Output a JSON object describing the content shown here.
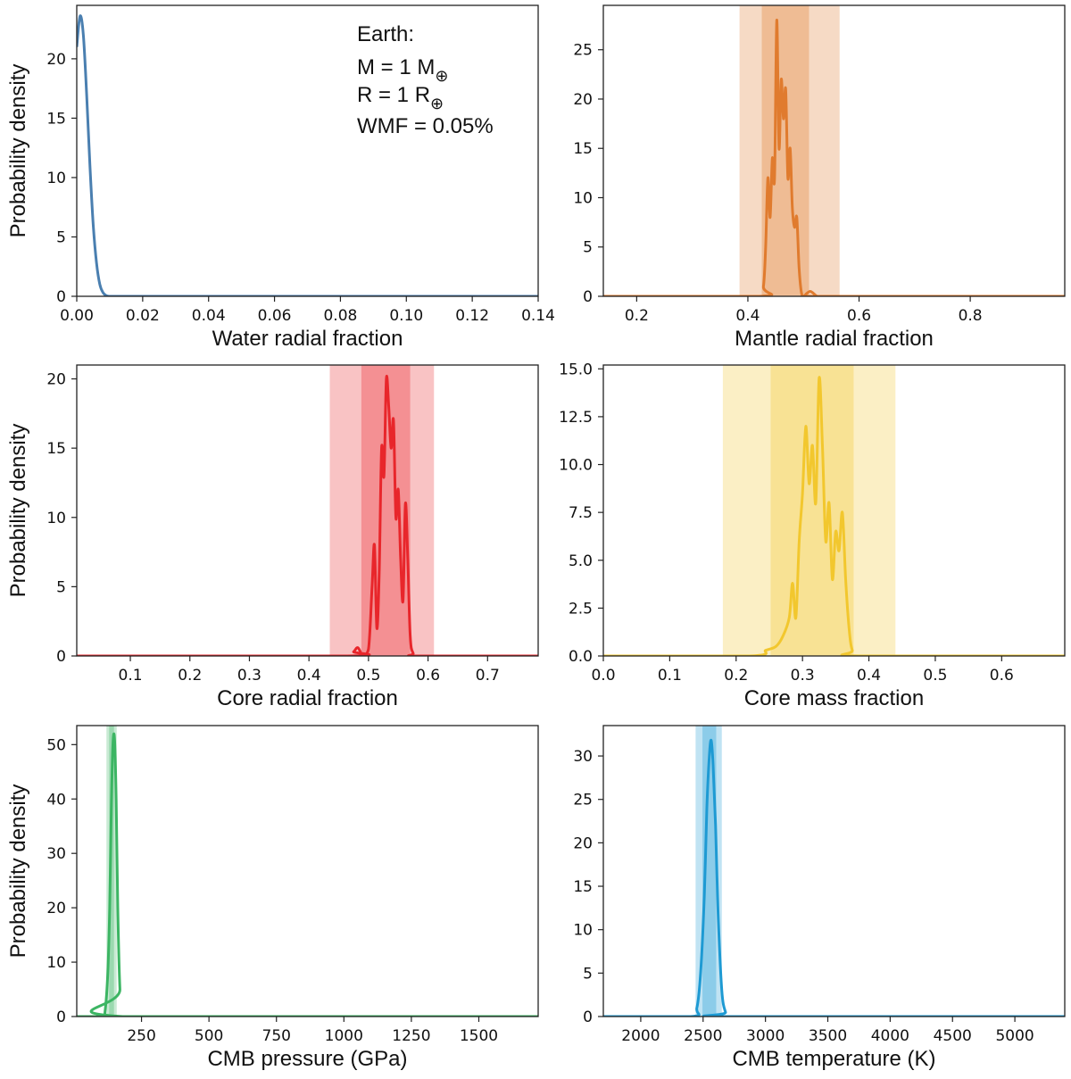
{
  "annotation": {
    "line1": "Earth:",
    "line2_prefix": "M = 1 M",
    "line3_prefix": "R = 1 R",
    "subscript_symbol": "⊕",
    "line4": "WMF = 0.05%"
  },
  "chart_data": [
    {
      "type": "line",
      "xlabel": "Water radial fraction",
      "ylabel": "Probability density",
      "color": "#4a7fb0",
      "xlim": [
        0,
        0.14
      ],
      "ylim": [
        0,
        24.5
      ],
      "xticks": [
        0,
        0.02,
        0.04,
        0.06,
        0.08,
        0.1,
        0.12,
        0.14
      ],
      "xtick_labels": [
        "0.00",
        "0.02",
        "0.04",
        "0.06",
        "0.08",
        "0.10",
        "0.12",
        "0.14"
      ],
      "yticks": [
        0,
        5,
        10,
        15,
        20
      ],
      "ytick_labels": [
        "0",
        "5",
        "10",
        "15",
        "20"
      ],
      "bands": [],
      "x": [
        0,
        0.001,
        0.002,
        0.003,
        0.004,
        0.005,
        0.006,
        0.007,
        0.008,
        0.009,
        0.01,
        0.012,
        0.02,
        0.05,
        0.1,
        0.14
      ],
      "y": [
        21,
        23.6,
        22,
        17,
        11,
        6,
        2.8,
        1,
        0.3,
        0.05,
        0,
        0,
        0,
        0,
        0,
        0
      ]
    },
    {
      "type": "line",
      "xlabel": "Mantle radial fraction",
      "ylabel": "",
      "color": "#e07b2e",
      "xlim": [
        0.14,
        0.97
      ],
      "ylim": [
        0,
        29.5
      ],
      "xticks": [
        0.2,
        0.4,
        0.6,
        0.8
      ],
      "xtick_labels": [
        "0.2",
        "0.4",
        "0.6",
        "0.8"
      ],
      "yticks": [
        0,
        5,
        10,
        15,
        20,
        25
      ],
      "ytick_labels": [
        "0",
        "5",
        "10",
        "15",
        "20",
        "25"
      ],
      "bands": [
        [
          0.385,
          0.565
        ],
        [
          0.425,
          0.51
        ]
      ],
      "x": [
        0.14,
        0.42,
        0.428,
        0.432,
        0.436,
        0.44,
        0.444,
        0.448,
        0.452,
        0.456,
        0.46,
        0.464,
        0.468,
        0.472,
        0.476,
        0.48,
        0.484,
        0.488,
        0.492,
        0.496,
        0.5,
        0.506,
        0.512,
        0.518,
        0.525,
        0.54,
        0.97
      ],
      "y": [
        0,
        0,
        1,
        5,
        12,
        8,
        14,
        12,
        28,
        15,
        22,
        18,
        21,
        12,
        15,
        9,
        7,
        8,
        3,
        0.5,
        0,
        0.3,
        0.5,
        0.3,
        0,
        0,
        0
      ]
    },
    {
      "type": "line",
      "xlabel": "Core radial fraction",
      "ylabel": "Probability density",
      "color": "#e8262b",
      "xlim": [
        0.01,
        0.785
      ],
      "ylim": [
        0,
        21
      ],
      "xticks": [
        0.1,
        0.2,
        0.3,
        0.4,
        0.5,
        0.6,
        0.7
      ],
      "xtick_labels": [
        "0.1",
        "0.2",
        "0.3",
        "0.4",
        "0.5",
        "0.6",
        "0.7"
      ],
      "yticks": [
        0,
        5,
        10,
        15,
        20
      ],
      "ytick_labels": [
        "0",
        "5",
        "10",
        "15",
        "20"
      ],
      "bands": [
        [
          0.435,
          0.61
        ],
        [
          0.488,
          0.57
        ]
      ],
      "x": [
        0.01,
        0.465,
        0.475,
        0.482,
        0.49,
        0.5,
        0.506,
        0.51,
        0.514,
        0.518,
        0.522,
        0.526,
        0.53,
        0.534,
        0.538,
        0.542,
        0.546,
        0.55,
        0.554,
        0.558,
        0.562,
        0.566,
        0.57,
        0.575,
        0.585,
        0.785
      ],
      "y": [
        0,
        0,
        0.3,
        0.6,
        0.1,
        0.5,
        5,
        8,
        2,
        6,
        15,
        13,
        20,
        18,
        15,
        17,
        10,
        12,
        7,
        4,
        11,
        7,
        1.5,
        0.2,
        0,
        0
      ]
    },
    {
      "type": "line",
      "xlabel": "Core mass fraction",
      "ylabel": "",
      "color": "#f2c72e",
      "xlim": [
        0,
        0.695
      ],
      "ylim": [
        0,
        15.2
      ],
      "xticks": [
        0,
        0.1,
        0.2,
        0.3,
        0.4,
        0.5,
        0.6
      ],
      "xtick_labels": [
        "0.0",
        "0.1",
        "0.2",
        "0.3",
        "0.4",
        "0.5",
        "0.6"
      ],
      "yticks": [
        0,
        2.5,
        5,
        7.5,
        10,
        12.5,
        15
      ],
      "ytick_labels": [
        "0.0",
        "2.5",
        "5.0",
        "7.5",
        "10.0",
        "12.5",
        "15.0"
      ],
      "bands": [
        [
          0.18,
          0.44
        ],
        [
          0.252,
          0.377
        ]
      ],
      "x": [
        0,
        0.22,
        0.245,
        0.26,
        0.27,
        0.28,
        0.285,
        0.29,
        0.295,
        0.3,
        0.305,
        0.31,
        0.315,
        0.32,
        0.325,
        0.33,
        0.335,
        0.34,
        0.345,
        0.35,
        0.355,
        0.36,
        0.365,
        0.37,
        0.375,
        0.385,
        0.695
      ],
      "y": [
        0,
        0,
        0.3,
        0.5,
        1,
        2,
        3.8,
        2,
        6,
        8.5,
        12,
        9,
        11,
        8,
        14.5,
        11,
        6,
        8,
        4,
        6.5,
        5.5,
        7.5,
        4,
        1.5,
        0.3,
        0,
        0
      ]
    },
    {
      "type": "line",
      "xlabel": "CMB pressure (GPa)",
      "ylabel": "Probability density",
      "color": "#3cb563",
      "xlim": [
        10,
        1720
      ],
      "ylim": [
        0,
        53.5
      ],
      "xticks": [
        250,
        500,
        750,
        1000,
        1250,
        1500
      ],
      "xtick_labels": [
        "250",
        "500",
        "750",
        "1000",
        "1250",
        "1500"
      ],
      "yticks": [
        0,
        10,
        20,
        30,
        40,
        50
      ],
      "ytick_labels": [
        "0",
        "10",
        "20",
        "30",
        "40",
        "50"
      ],
      "bands": [
        [
          120,
          158
        ],
        [
          130,
          148
        ]
      ],
      "x": [
        10,
        105,
        115,
        125,
        132,
        138,
        144,
        150,
        156,
        162,
        170,
        180,
        1720
      ],
      "y": [
        0,
        0,
        1,
        8,
        20,
        38,
        50,
        51,
        40,
        20,
        5,
        0,
        0
      ]
    },
    {
      "type": "line",
      "xlabel": "CMB temperature (K)",
      "ylabel": "",
      "color": "#1e9ad3",
      "xlim": [
        1700,
        5400
      ],
      "ylim": [
        0,
        33.5
      ],
      "xticks": [
        2000,
        2500,
        3000,
        3500,
        4000,
        4500,
        5000
      ],
      "xtick_labels": [
        "2000",
        "2500",
        "3000",
        "3500",
        "4000",
        "4500",
        "5000"
      ],
      "yticks": [
        0,
        5,
        10,
        15,
        20,
        25,
        30
      ],
      "ytick_labels": [
        "0",
        "5",
        "10",
        "15",
        "20",
        "25",
        "30"
      ],
      "bands": [
        [
          2440,
          2650
        ],
        [
          2495,
          2605
        ]
      ],
      "x": [
        1700,
        2400,
        2450,
        2480,
        2510,
        2530,
        2550,
        2565,
        2580,
        2600,
        2620,
        2650,
        2680,
        2710,
        5400
      ],
      "y": [
        0,
        0,
        1,
        5,
        14,
        24,
        30,
        31.8,
        29,
        22,
        12,
        3,
        0.5,
        0,
        0
      ]
    }
  ]
}
